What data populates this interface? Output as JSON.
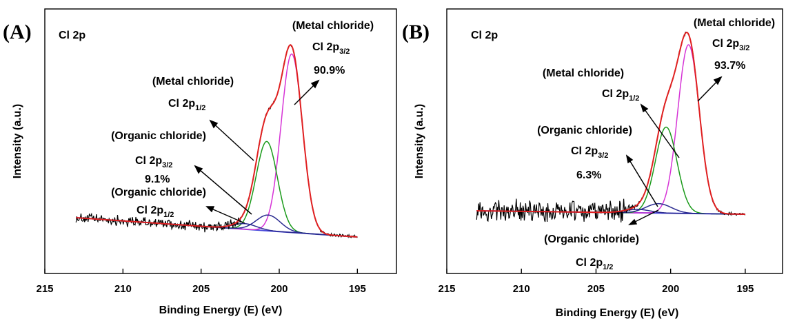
{
  "chart_data": [
    {
      "type": "line",
      "panel_label": "(A)",
      "spectrum_label": "Cl 2p",
      "xlabel": "Binding Energy (E) (eV)",
      "ylabel": "Intensity (a.u.)",
      "xlim": [
        215,
        192.5
      ],
      "x_reversed": true,
      "xticks": [
        "215",
        "210",
        "205",
        "200",
        "195"
      ],
      "x_tick_values": [
        215,
        210,
        205,
        200,
        195
      ],
      "data_range": [
        213,
        195
      ],
      "peaks": [
        {
          "name": "Metal chloride Cl 2p3/2",
          "center": 199.2,
          "height": 0.96,
          "fwhm": 1.6,
          "color": "#d633d6"
        },
        {
          "name": "Metal chloride Cl 2p1/2",
          "center": 200.8,
          "height": 0.48,
          "fwhm": 1.6,
          "color": "#1a9a1a"
        },
        {
          "name": "Organic chloride Cl 2p3/2",
          "center": 200.7,
          "height": 0.085,
          "fwhm": 1.8,
          "color": "#2a2a90"
        },
        {
          "name": "Organic chloride Cl 2p1/2",
          "center": 202.2,
          "height": 0.03,
          "fwhm": 1.8,
          "color": "#2a2a90"
        }
      ],
      "colors": {
        "raw": "#000000",
        "envelope": "#e02020",
        "background": "#4b4bdb"
      },
      "annotations": [
        {
          "label": "(Metal chloride)",
          "sub_main": "Cl 2p",
          "sub": "3/2",
          "percent": "90.9%"
        },
        {
          "label": "(Metal chloride)",
          "sub_main": "Cl 2p",
          "sub": "1/2"
        },
        {
          "label": "(Organic chloride)",
          "sub_main": "Cl 2p",
          "sub": "3/2",
          "percent": "9.1%"
        },
        {
          "label": "(Organic chloride)",
          "sub_main": "Cl 2p",
          "sub": "1/2"
        }
      ]
    },
    {
      "type": "line",
      "panel_label": "(B)",
      "spectrum_label": "Cl 2p",
      "xlabel": "Binding Energy (E) (eV)",
      "ylabel": "Intensity (a.u.)",
      "xlim": [
        215,
        192.5
      ],
      "x_reversed": true,
      "xticks": [
        "215",
        "210",
        "205",
        "200",
        "195"
      ],
      "x_tick_values": [
        215,
        210,
        205,
        200,
        195
      ],
      "data_range": [
        213,
        195
      ],
      "peaks": [
        {
          "name": "Metal chloride Cl 2p3/2",
          "center": 198.8,
          "height": 0.98,
          "fwhm": 1.7,
          "color": "#d633d6"
        },
        {
          "name": "Metal chloride Cl 2p1/2",
          "center": 200.3,
          "height": 0.5,
          "fwhm": 1.7,
          "color": "#1a9a1a"
        },
        {
          "name": "Organic chloride Cl 2p3/2",
          "center": 200.8,
          "height": 0.055,
          "fwhm": 2.0,
          "color": "#2a2a90"
        },
        {
          "name": "Organic chloride Cl 2p1/2",
          "center": 202.2,
          "height": 0.02,
          "fwhm": 2.0,
          "color": "#2a2a90"
        }
      ],
      "colors": {
        "raw": "#000000",
        "envelope": "#e02020",
        "background": "#4b4bdb"
      },
      "annotations": [
        {
          "label": "(Metal chloride)",
          "sub_main": "Cl 2p",
          "sub": "3/2",
          "percent": "93.7%"
        },
        {
          "label": "(Metal chloride)",
          "sub_main": "Cl 2p",
          "sub": "1/2"
        },
        {
          "label": "(Organic chloride)",
          "sub_main": "Cl 2p",
          "sub": "3/2",
          "percent": "6.3%"
        },
        {
          "label": "(Organic chloride)",
          "sub_main": "Cl 2p",
          "sub": "1/2"
        }
      ]
    }
  ]
}
